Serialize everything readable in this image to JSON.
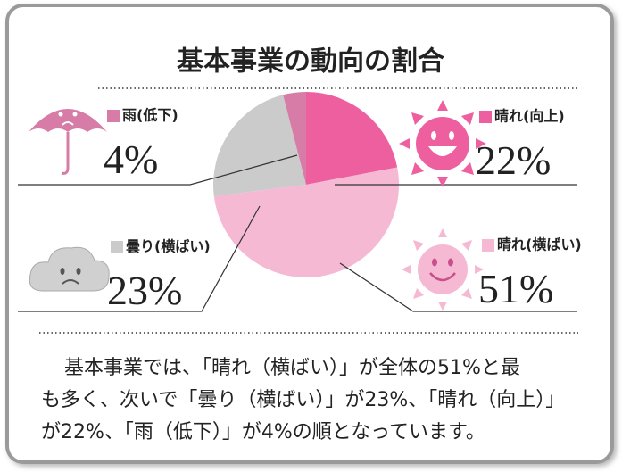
{
  "chart_data": {
    "type": "pie",
    "title": "基本事業の動向の割合",
    "categories": [
      "晴れ(向上)",
      "晴れ(横ばい)",
      "曇り(横ばい)",
      "雨(低下)"
    ],
    "values": [
      22,
      51,
      23,
      4
    ],
    "value_labels": [
      "22%",
      "51%",
      "23%",
      "4%"
    ],
    "colors": [
      "#ee5fa0",
      "#f6b9d4",
      "#cbcbcb",
      "#d77ca6"
    ]
  },
  "description": [
    "基本事業では、「晴れ（横ばい）」が全体の51%と最",
    "も多く、次いで「曇り（横ばい）」が23%、「晴れ（向上）」",
    "が22%、「雨（低下）」が4%の順となっています。"
  ]
}
